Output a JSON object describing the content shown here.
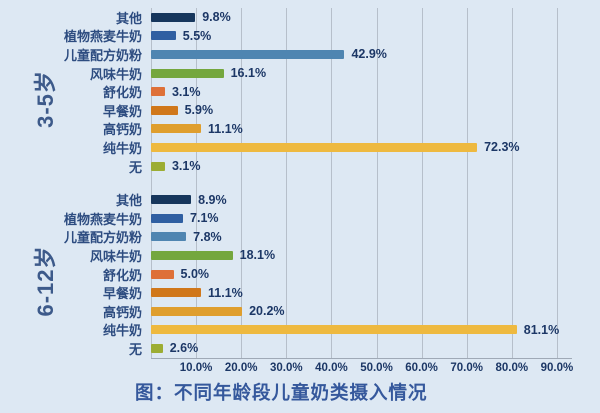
{
  "caption": "图：不同年龄段儿童奶类摄入情况",
  "chart_data": {
    "type": "bar",
    "orientation": "horizontal",
    "title": "图：不同年龄段儿童奶类摄入情况",
    "xlabel": "",
    "ylabel": "",
    "unit": "%",
    "xlim": [
      0,
      92
    ],
    "grid": true,
    "legend": "none",
    "x_ticks": [
      10,
      20,
      30,
      40,
      50,
      60,
      70,
      80,
      90
    ],
    "x_tick_labels": [
      "10.0%",
      "20.0%",
      "30.0%",
      "40.0%",
      "50.0%",
      "60.0%",
      "70.0%",
      "80.0%",
      "90.0%"
    ],
    "categories": [
      "其他",
      "植物燕麦牛奶",
      "儿童配方奶粉",
      "风味牛奶",
      "舒化奶",
      "早餐奶",
      "高钙奶",
      "纯牛奶",
      "无"
    ],
    "category_colors": [
      "#16365c",
      "#2f5fa2",
      "#4f85b1",
      "#74a73e",
      "#de7038",
      "#d0771a",
      "#df9e2d",
      "#eeb93f",
      "#9cad33"
    ],
    "series": [
      {
        "name": "3-5岁",
        "values": [
          9.8,
          5.5,
          42.9,
          16.1,
          3.1,
          5.9,
          11.1,
          72.3,
          3.1
        ],
        "labels": [
          "9.8%",
          "5.5%",
          "42.9%",
          "16.1%",
          "3.1%",
          "5.9%",
          "11.1%",
          "72.3%",
          "3.1%"
        ]
      },
      {
        "name": "6-12岁",
        "values": [
          8.9,
          7.1,
          7.8,
          18.1,
          5.0,
          11.1,
          20.2,
          81.1,
          2.6
        ],
        "labels": [
          "8.9%",
          "7.1%",
          "7.8%",
          "18.1%",
          "5.0%",
          "11.1%",
          "20.2%",
          "81.1%",
          "2.6%"
        ]
      }
    ]
  },
  "colors": {
    "background": "#dde8f3",
    "gridline": "#b6bfca",
    "axis": "#9fa9b6",
    "value_label": "#1c3766",
    "category_label": "#2d4c80",
    "tick_label": "#1c3766",
    "group_label": "#3d5a8a",
    "title": "#35589c"
  }
}
